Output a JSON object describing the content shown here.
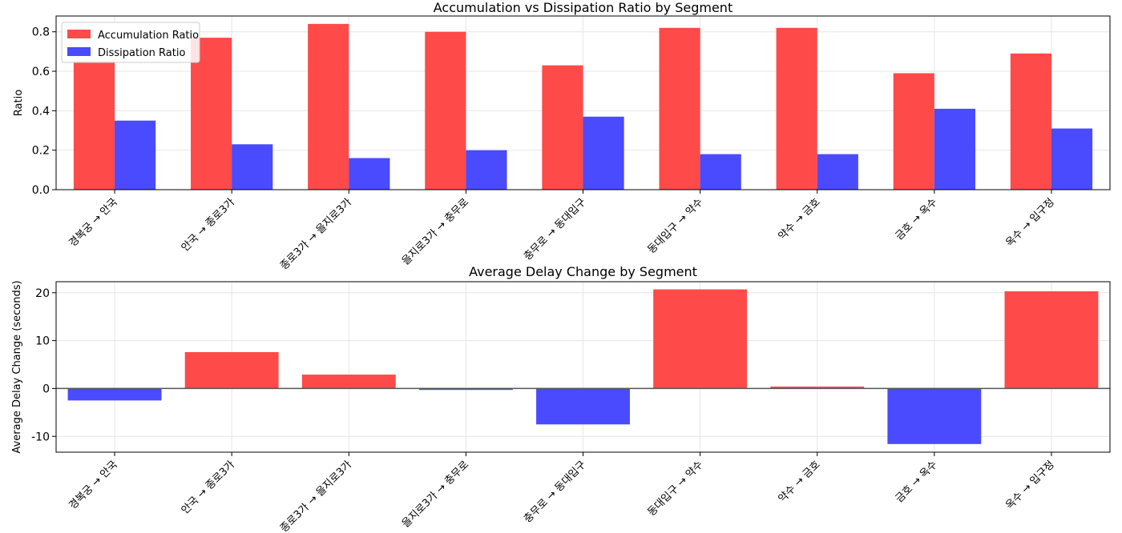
{
  "chart_data": [
    {
      "type": "bar",
      "title": "Accumulation vs Dissipation Ratio by Segment",
      "xlabel": "",
      "ylabel": "Ratio",
      "ylim": [
        0,
        0.88
      ],
      "yticks": [
        "0.0",
        "0.2",
        "0.4",
        "0.6",
        "0.8"
      ],
      "ytick_values": [
        0.0,
        0.2,
        0.4,
        0.6,
        0.8
      ],
      "grid": true,
      "legend_position": "top-left",
      "categories": [
        "경복궁 → 안국",
        "안국 → 종로3가",
        "종로3가 → 을지로3가",
        "을지로3가 → 충무로",
        "충무로 → 동대입구",
        "동대입구 → 약수",
        "약수 → 금호",
        "금호 → 옥수",
        "옥수 → 입구정"
      ],
      "series": [
        {
          "name": "Accumulation Ratio",
          "color": "#ff4a4a",
          "values": [
            0.65,
            0.77,
            0.84,
            0.8,
            0.63,
            0.82,
            0.82,
            0.59,
            0.69
          ]
        },
        {
          "name": "Dissipation Ratio",
          "color": "#4a4aff",
          "values": [
            0.35,
            0.23,
            0.16,
            0.2,
            0.37,
            0.18,
            0.18,
            0.41,
            0.31
          ]
        }
      ]
    },
    {
      "type": "bar",
      "title": "Average Delay Change by Segment",
      "xlabel": "",
      "ylabel": "Average Delay Change (seconds)",
      "ylim": [
        -13.3,
        22.3
      ],
      "yticks": [
        "-10",
        "0",
        "10",
        "20"
      ],
      "ytick_values": [
        -10,
        0,
        10,
        20
      ],
      "grid": true,
      "positive_color": "#ff4a4a",
      "negative_color": "#4a4aff",
      "categories": [
        "경복궁 → 안국",
        "안국 → 종로3가",
        "종로3가 → 을지로3가",
        "을지로3가 → 충무로",
        "충무로 → 동대입구",
        "동대입구 → 약수",
        "약수 → 금호",
        "금호 → 옥수",
        "옥수 → 입구정"
      ],
      "values": [
        -2.5,
        7.6,
        2.9,
        -0.3,
        -7.5,
        20.7,
        0.4,
        -11.6,
        20.3
      ]
    }
  ]
}
